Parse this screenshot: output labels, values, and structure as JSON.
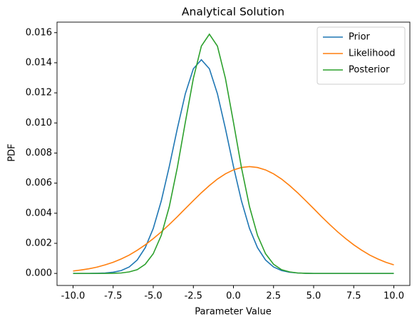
{
  "chart_data": {
    "type": "line",
    "title": "Analytical Solution",
    "xlabel": "Parameter Value",
    "ylabel": "PDF",
    "x": [
      -10,
      -9.5,
      -9,
      -8.5,
      -8,
      -7.5,
      -7,
      -6.5,
      -6,
      -5.5,
      -5,
      -4.5,
      -4,
      -3.5,
      -3,
      -2.5,
      -2,
      -1.5,
      -1,
      -0.5,
      0,
      0.5,
      1,
      1.5,
      2,
      2.5,
      3,
      3.5,
      4,
      4.5,
      5,
      5.5,
      6,
      6.5,
      7,
      7.5,
      8,
      8.5,
      9,
      9.5,
      10
    ],
    "series": [
      {
        "name": "Prior",
        "color": "#1f77b4",
        "values": [
          0,
          0,
          0,
          1e-05,
          3e-05,
          8e-05,
          0.00019,
          0.00043,
          0.00089,
          0.00171,
          0.00299,
          0.00482,
          0.00711,
          0.00962,
          0.01194,
          0.0136,
          0.0142,
          0.0136,
          0.01194,
          0.00962,
          0.00711,
          0.00482,
          0.00299,
          0.00171,
          0.00089,
          0.00043,
          0.00019,
          8e-05,
          3e-05,
          1e-05,
          0,
          0,
          0,
          0,
          0,
          0,
          0,
          0,
          0,
          0,
          0
        ]
      },
      {
        "name": "Likelihood",
        "color": "#ff7f0e",
        "values": [
          0.00016,
          0.00023,
          0.00031,
          0.00042,
          0.00057,
          0.00074,
          0.00096,
          0.00122,
          0.00154,
          0.0019,
          0.00231,
          0.00276,
          0.00325,
          0.00377,
          0.00431,
          0.00484,
          0.00536,
          0.00584,
          0.00627,
          0.00662,
          0.00688,
          0.00704,
          0.0071,
          0.00704,
          0.00688,
          0.00662,
          0.00627,
          0.00584,
          0.00536,
          0.00484,
          0.00431,
          0.00377,
          0.00325,
          0.00276,
          0.00231,
          0.0019,
          0.00154,
          0.00122,
          0.00096,
          0.00074,
          0.00057
        ]
      },
      {
        "name": "Posterior",
        "color": "#2ca02c",
        "values": [
          0,
          0,
          0,
          0,
          0,
          1e-05,
          3e-05,
          0.0001,
          0.00025,
          0.00061,
          0.00131,
          0.00253,
          0.00444,
          0.00703,
          0.01005,
          0.01296,
          0.01511,
          0.0159,
          0.01511,
          0.01296,
          0.01005,
          0.00703,
          0.00444,
          0.00253,
          0.00131,
          0.00061,
          0.00025,
          0.0001,
          3e-05,
          1e-05,
          0,
          0,
          0,
          0,
          0,
          0,
          0,
          0,
          0,
          0,
          0
        ]
      }
    ],
    "xlim": [
      -11,
      11
    ],
    "ylim": [
      -0.0008,
      0.0167
    ],
    "xticks": [
      {
        "value": -10,
        "label": "-10.0"
      },
      {
        "value": -7.5,
        "label": "-7.5"
      },
      {
        "value": -5,
        "label": "-5.0"
      },
      {
        "value": -2.5,
        "label": "-2.5"
      },
      {
        "value": 0,
        "label": "0.0"
      },
      {
        "value": 2.5,
        "label": "2.5"
      },
      {
        "value": 5,
        "label": "5.0"
      },
      {
        "value": 7.5,
        "label": "7.5"
      },
      {
        "value": 10,
        "label": "10.0"
      }
    ],
    "yticks": [
      {
        "value": 0,
        "label": "0.000"
      },
      {
        "value": 0.002,
        "label": "0.002"
      },
      {
        "value": 0.004,
        "label": "0.004"
      },
      {
        "value": 0.006,
        "label": "0.006"
      },
      {
        "value": 0.008,
        "label": "0.008"
      },
      {
        "value": 0.01,
        "label": "0.010"
      },
      {
        "value": 0.012,
        "label": "0.012"
      },
      {
        "value": 0.014,
        "label": "0.014"
      },
      {
        "value": 0.016,
        "label": "0.016"
      }
    ],
    "legend": "upper right"
  }
}
